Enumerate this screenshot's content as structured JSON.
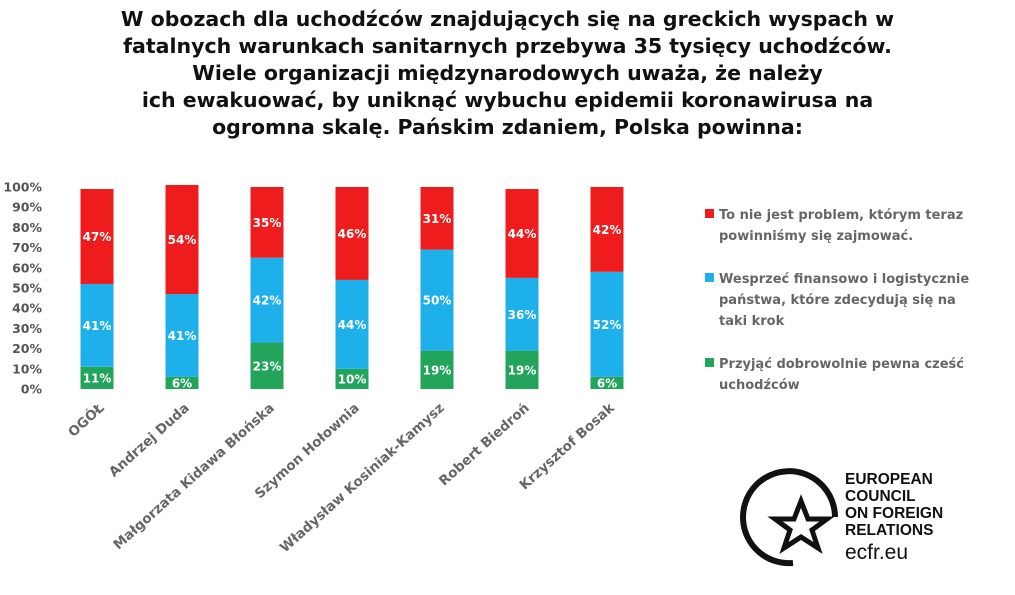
{
  "title": {
    "lines": [
      "W obozach dla uchodźców znajdujących się na greckich wyspach w",
      "fatalnych warunkach sanitarnych przebywa 35 tysięcy uchodźców.",
      "Wiele organizacji międzynarodowych uważa, że należy",
      "ich ewakuować, by uniknąć wybuchu epidemii koronawirusa na",
      "ogromna skalę. Pańskim zdaniem, Polska powinna:"
    ]
  },
  "chart_data": {
    "type": "bar",
    "stacked": true,
    "categories": [
      "OGÓŁ",
      "Andrzej Duda",
      "Małgorzata Kidawa Błońska",
      "Szymon Hołownia",
      "Władysław Kosiniak-Kamysz",
      "Robert Biedroń",
      "Krzysztof Bosak"
    ],
    "series": [
      {
        "name": "Przyjąć dobrowolnie pewna cześć uchodźców",
        "color": "#22a45a",
        "values": [
          11,
          6,
          23,
          10,
          19,
          19,
          6
        ],
        "labels": [
          "11%",
          "6%",
          "23%",
          "10%",
          "19%",
          "19%",
          "6%"
        ]
      },
      {
        "name": "Wesprzeć finansowo i logistycznie państwa, które zdecydują się na taki krok",
        "color": "#1eb0ea",
        "values": [
          41,
          41,
          42,
          44,
          50,
          36,
          52
        ],
        "labels": [
          "41%",
          "41%",
          "42%",
          "44%",
          "50%",
          "36%",
          "52%"
        ]
      },
      {
        "name": "To nie jest problem, którym teraz powinniśmy się zajmować.",
        "color": "#ee1c1c",
        "values": [
          47,
          54,
          35,
          46,
          31,
          44,
          42
        ],
        "labels": [
          "47%",
          "54%",
          "35%",
          "46%",
          "31%",
          "44%",
          "42%"
        ]
      }
    ],
    "ylim": [
      0,
      100
    ],
    "yticks": [
      "0%",
      "10%",
      "20%",
      "30%",
      "40%",
      "50%",
      "60%",
      "70%",
      "80%",
      "90%",
      "100%"
    ],
    "grid": false,
    "legend_position": "right"
  },
  "legend": [
    {
      "lines": [
        "To nie jest problem, którym teraz",
        "powinniśmy się zajmować."
      ],
      "color": "#ee1c1c"
    },
    {
      "lines": [
        "Wesprzeć finansowo i logistycznie",
        "państwa, które zdecydują się na",
        "taki krok"
      ],
      "color": "#1eb0ea"
    },
    {
      "lines": [
        "Przyjąć dobrowolnie pewna cześć",
        "uchodźców"
      ],
      "color": "#22a45a"
    }
  ],
  "logo": {
    "lines": [
      "EUROPEAN",
      "COUNCIL",
      "ON FOREIGN",
      "RELATIONS"
    ],
    "url": "ecfr.eu"
  }
}
